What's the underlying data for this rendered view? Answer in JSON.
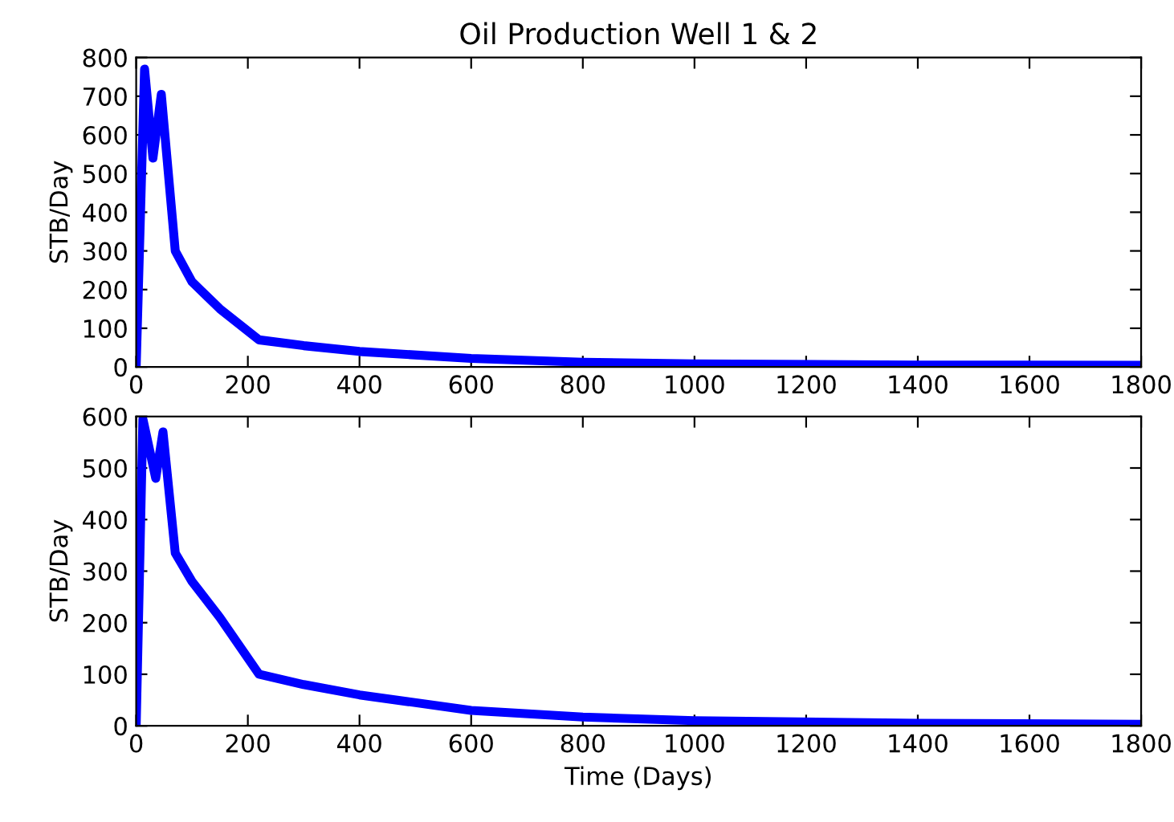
{
  "chart_data": [
    {
      "type": "line",
      "title": "Oil Production Well 1 & 2",
      "ylabel": "STB/Day",
      "series": [
        {
          "color": "#0000ff",
          "x": [
            0,
            15,
            30,
            45,
            70,
            100,
            150,
            220,
            300,
            400,
            600,
            800,
            1000,
            1400,
            1800
          ],
          "values": [
            0,
            770,
            540,
            705,
            300,
            220,
            150,
            70,
            55,
            40,
            22,
            12,
            8,
            5,
            4
          ]
        }
      ],
      "xlim": [
        0,
        1800
      ],
      "xticks": [
        0,
        200,
        400,
        600,
        800,
        1000,
        1200,
        1400,
        1600,
        1800
      ],
      "ylim": [
        0,
        800
      ],
      "yticks": [
        0,
        100,
        200,
        300,
        400,
        500,
        600,
        700,
        800
      ],
      "grid": false
    },
    {
      "type": "line",
      "xlabel": "Time (Days)",
      "ylabel": "STB/Day",
      "series": [
        {
          "color": "#0000ff",
          "x": [
            0,
            12,
            35,
            48,
            70,
            100,
            150,
            220,
            300,
            400,
            600,
            800,
            1000,
            1400,
            1800
          ],
          "values": [
            0,
            595,
            480,
            570,
            335,
            280,
            210,
            100,
            80,
            60,
            30,
            17,
            10,
            5,
            3
          ]
        }
      ],
      "xlim": [
        0,
        1800
      ],
      "xticks": [
        0,
        200,
        400,
        600,
        800,
        1000,
        1200,
        1400,
        1600,
        1800
      ],
      "ylim": [
        0,
        600
      ],
      "yticks": [
        0,
        100,
        200,
        300,
        400,
        500,
        600
      ],
      "grid": false
    }
  ]
}
